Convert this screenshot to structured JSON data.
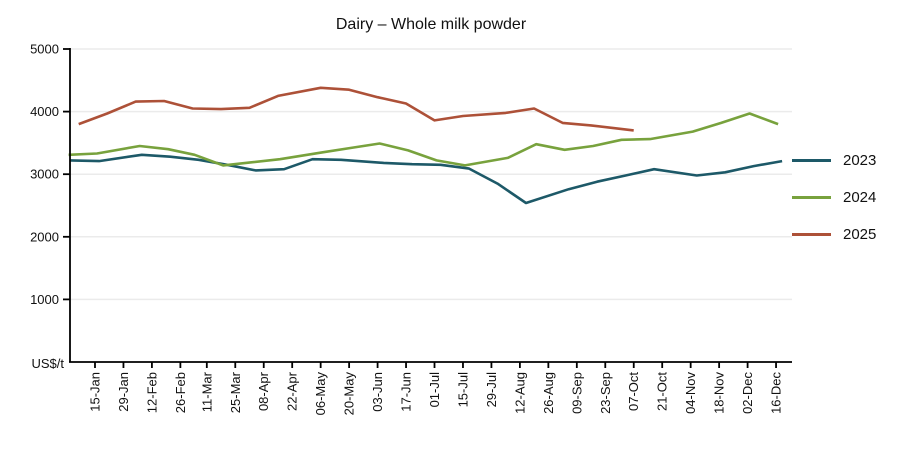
{
  "chart_data": {
    "type": "line",
    "title": "Dairy – Whole milk powder",
    "y_unit_label": "US$/t",
    "ylim": [
      0,
      5000
    ],
    "y_ticks": [
      1000,
      2000,
      3000,
      4000,
      5000
    ],
    "grid": "horizontal-only",
    "legend_position": "right-outside",
    "x_tick_labels": [
      "15-Jan",
      "29-Jan",
      "12-Feb",
      "26-Feb",
      "11-Mar",
      "25-Mar",
      "08-Apr",
      "22-Apr",
      "06-May",
      "20-May",
      "03-Jun",
      "17-Jun",
      "01-Jul",
      "15-Jul",
      "29-Jul",
      "12-Aug",
      "26-Aug",
      "09-Sep",
      "23-Sep",
      "07-Oct",
      "21-Oct",
      "04-Nov",
      "18-Nov",
      "02-Dec",
      "16-Dec"
    ],
    "series": [
      {
        "name": "2023",
        "color": "#1d5968",
        "points": [
          {
            "d": "03-Jan",
            "v": 3220
          },
          {
            "d": "17-Jan",
            "v": 3210
          },
          {
            "d": "07-Feb",
            "v": 3310
          },
          {
            "d": "21-Feb",
            "v": 3280
          },
          {
            "d": "07-Mar",
            "v": 3230
          },
          {
            "d": "21-Mar",
            "v": 3150
          },
          {
            "d": "04-Apr",
            "v": 3060
          },
          {
            "d": "18-Apr",
            "v": 3080
          },
          {
            "d": "02-May",
            "v": 3240
          },
          {
            "d": "16-May",
            "v": 3230
          },
          {
            "d": "06-Jun",
            "v": 3180
          },
          {
            "d": "20-Jun",
            "v": 3160
          },
          {
            "d": "04-Jul",
            "v": 3150
          },
          {
            "d": "18-Jul",
            "v": 3090
          },
          {
            "d": "01-Aug",
            "v": 2850
          },
          {
            "d": "15-Aug",
            "v": 2540
          },
          {
            "d": "05-Sep",
            "v": 2760
          },
          {
            "d": "19-Sep",
            "v": 2880
          },
          {
            "d": "03-Oct",
            "v": 2980
          },
          {
            "d": "17-Oct",
            "v": 3080
          },
          {
            "d": "07-Nov",
            "v": 2980
          },
          {
            "d": "21-Nov",
            "v": 3030
          },
          {
            "d": "05-Dec",
            "v": 3130
          },
          {
            "d": "19-Dec",
            "v": 3210
          }
        ]
      },
      {
        "name": "2024",
        "color": "#78a23d",
        "points": [
          {
            "d": "02-Jan",
            "v": 3310
          },
          {
            "d": "16-Jan",
            "v": 3330
          },
          {
            "d": "06-Feb",
            "v": 3450
          },
          {
            "d": "20-Feb",
            "v": 3400
          },
          {
            "d": "05-Mar",
            "v": 3310
          },
          {
            "d": "19-Mar",
            "v": 3140
          },
          {
            "d": "02-Apr",
            "v": 3190
          },
          {
            "d": "16-Apr",
            "v": 3240
          },
          {
            "d": "07-May",
            "v": 3350
          },
          {
            "d": "21-May",
            "v": 3420
          },
          {
            "d": "04-Jun",
            "v": 3490
          },
          {
            "d": "18-Jun",
            "v": 3380
          },
          {
            "d": "02-Jul",
            "v": 3220
          },
          {
            "d": "16-Jul",
            "v": 3140
          },
          {
            "d": "06-Aug",
            "v": 3260
          },
          {
            "d": "20-Aug",
            "v": 3480
          },
          {
            "d": "03-Sep",
            "v": 3390
          },
          {
            "d": "17-Sep",
            "v": 3450
          },
          {
            "d": "01-Oct",
            "v": 3550
          },
          {
            "d": "15-Oct",
            "v": 3560
          },
          {
            "d": "05-Nov",
            "v": 3680
          },
          {
            "d": "19-Nov",
            "v": 3820
          },
          {
            "d": "03-Dec",
            "v": 3970
          },
          {
            "d": "17-Dec",
            "v": 3800
          }
        ]
      },
      {
        "name": "2025",
        "color": "#ad5138",
        "points": [
          {
            "d": "07-Jan",
            "v": 3800
          },
          {
            "d": "21-Jan",
            "v": 3970
          },
          {
            "d": "04-Feb",
            "v": 4160
          },
          {
            "d": "18-Feb",
            "v": 4170
          },
          {
            "d": "04-Mar",
            "v": 4050
          },
          {
            "d": "18-Mar",
            "v": 4040
          },
          {
            "d": "01-Apr",
            "v": 4060
          },
          {
            "d": "15-Apr",
            "v": 4250
          },
          {
            "d": "06-May",
            "v": 4380
          },
          {
            "d": "20-May",
            "v": 4350
          },
          {
            "d": "03-Jun",
            "v": 4230
          },
          {
            "d": "17-Jun",
            "v": 4130
          },
          {
            "d": "01-Jul",
            "v": 3860
          },
          {
            "d": "15-Jul",
            "v": 3930
          },
          {
            "d": "05-Aug",
            "v": 3980
          },
          {
            "d": "19-Aug",
            "v": 4050
          },
          {
            "d": "02-Sep",
            "v": 3820
          },
          {
            "d": "16-Sep",
            "v": 3780
          },
          {
            "d": "07-Oct",
            "v": 3700
          }
        ]
      }
    ]
  }
}
